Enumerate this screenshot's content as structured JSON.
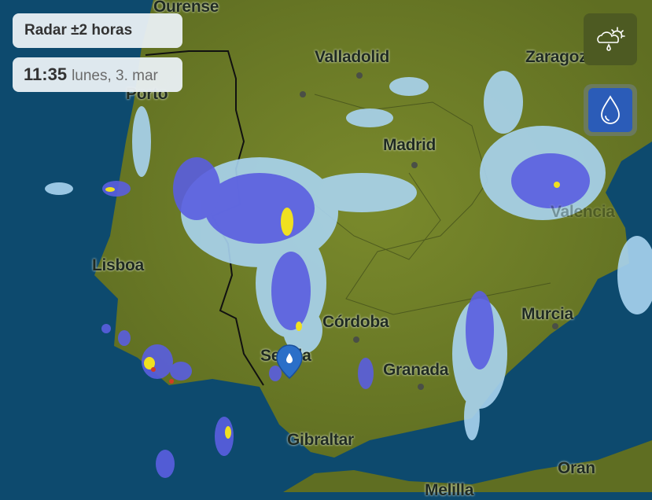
{
  "header": {
    "title": "Radar ±2 horas"
  },
  "time": {
    "clock": "11:35",
    "date": "lunes, 3. mar"
  },
  "layers": [
    {
      "name": "weather",
      "icon": "cloud-sun-rain-icon",
      "active": false
    },
    {
      "name": "radar",
      "icon": "water-drop-icon",
      "active": true
    }
  ],
  "cities": {
    "ourense": "Ourense",
    "valladolid": "Valladolid",
    "zaragoza": "Zaragoza",
    "porto": "Porto",
    "madrid": "Madrid",
    "valencia": "Valencia",
    "lisboa": "Lisboa",
    "cordoba": "Córdoba",
    "murcia": "Murcia",
    "sevilla": "Sevilla",
    "granada": "Granada",
    "gibraltar": "Gibraltar",
    "oran": "Oran",
    "melilla": "Melilla"
  },
  "colors": {
    "sea": "#0d4a6e",
    "land": "#6b7a2a",
    "radar_light": "#a9d4f0",
    "radar_mid": "#5a5ee0",
    "radar_heavy": "#f0e020",
    "active_layer": "#2b5cb8"
  }
}
